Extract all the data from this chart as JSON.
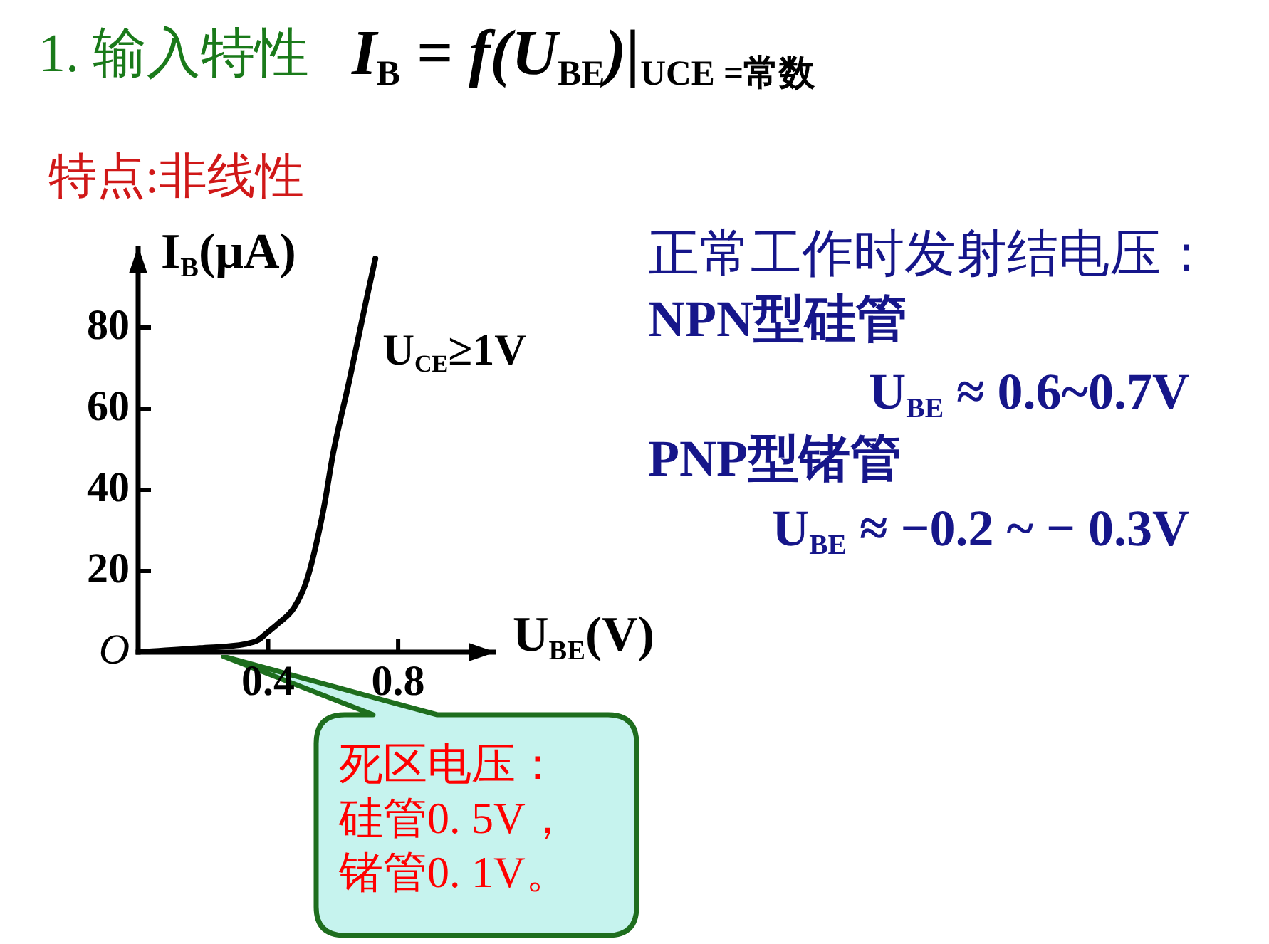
{
  "chart_data": {
    "type": "line",
    "title": "1. 输入特性",
    "subtitle": "I$_{B}$ = f(U$_{BE}$)|$_{UCE =常数}$",
    "xlabel": "U$_{BE}$(V)",
    "ylabel": "I$_{B}$(μA)",
    "x": [
      0,
      0.19,
      0.33,
      0.37,
      0.4,
      0.43,
      0.48,
      0.52,
      0.57,
      0.6,
      0.65,
      0.7,
      0.73
    ],
    "series": [
      {
        "name": "U$_{CE}$≥1V",
        "color": "#000000",
        "values": [
          0,
          1,
          2,
          3,
          5,
          7,
          11,
          18,
          35,
          49,
          67,
          86,
          97
        ]
      }
    ],
    "xlim": [
      0,
      1.1
    ],
    "ylim": [
      0,
      100
    ],
    "xticks": [
      0.4,
      0.8
    ],
    "yticks": [
      {
        "value": 0,
        "label": "O"
      },
      20,
      40,
      60,
      80
    ],
    "marker": "none",
    "annotations": [
      "特点:非线性",
      "正常工作时发射结电压：",
      "NPN型硅管",
      "U$_{BE}$ ≈ 0.6~0.7V",
      "PNP型锗管",
      "U$_{BE}$ ≈ −0.2 ~ − 0.3V",
      "死区电压：硅管0. 5V，锗管0. 1V。"
    ]
  }
}
